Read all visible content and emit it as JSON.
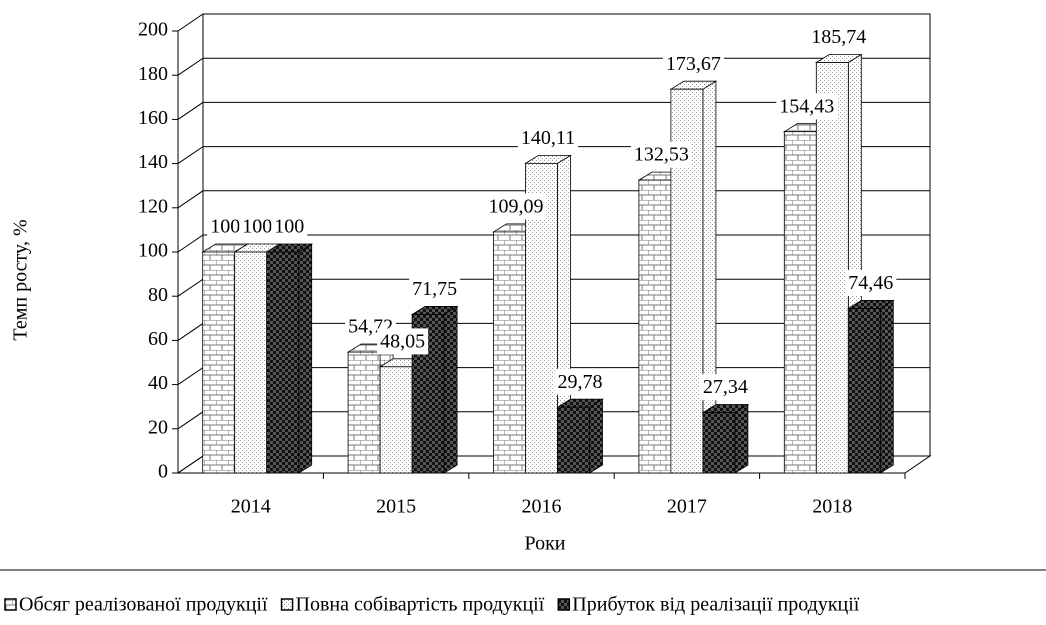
{
  "chart_data": {
    "type": "bar3d",
    "categories": [
      "2014",
      "2015",
      "2016",
      "2017",
      "2018"
    ],
    "series": [
      {
        "name": "Обсяг реалізованої продукції",
        "color": "#d9d9d9",
        "pattern": "brick",
        "values": [
          100,
          54.72,
          109.09,
          132.53,
          154.43
        ],
        "value_labels": [
          "100",
          "54,72",
          "109,09",
          "132,53",
          "154,43"
        ]
      },
      {
        "name": "Повна собівартість продукції",
        "color": "#ececec",
        "pattern": "dots",
        "values": [
          100,
          48.05,
          140.11,
          173.67,
          185.74
        ],
        "value_labels": [
          "100",
          "48,05",
          "140,11",
          "173,67",
          "185,74"
        ]
      },
      {
        "name": "Прибуток від реалізації продукції",
        "color": "#555555",
        "pattern": "checker",
        "values": [
          100,
          71.75,
          29.78,
          27.34,
          74.46
        ],
        "value_labels": [
          "100",
          "71,75",
          "29,78",
          "27,34",
          "74,46"
        ]
      }
    ],
    "ylim": [
      0,
      200
    ],
    "yticks": [
      0,
      20,
      40,
      60,
      80,
      100,
      120,
      140,
      160,
      180,
      200
    ],
    "ylabel": "Темп росту, %",
    "xlabel": "Роки",
    "grid": true,
    "legend": "bottom"
  }
}
